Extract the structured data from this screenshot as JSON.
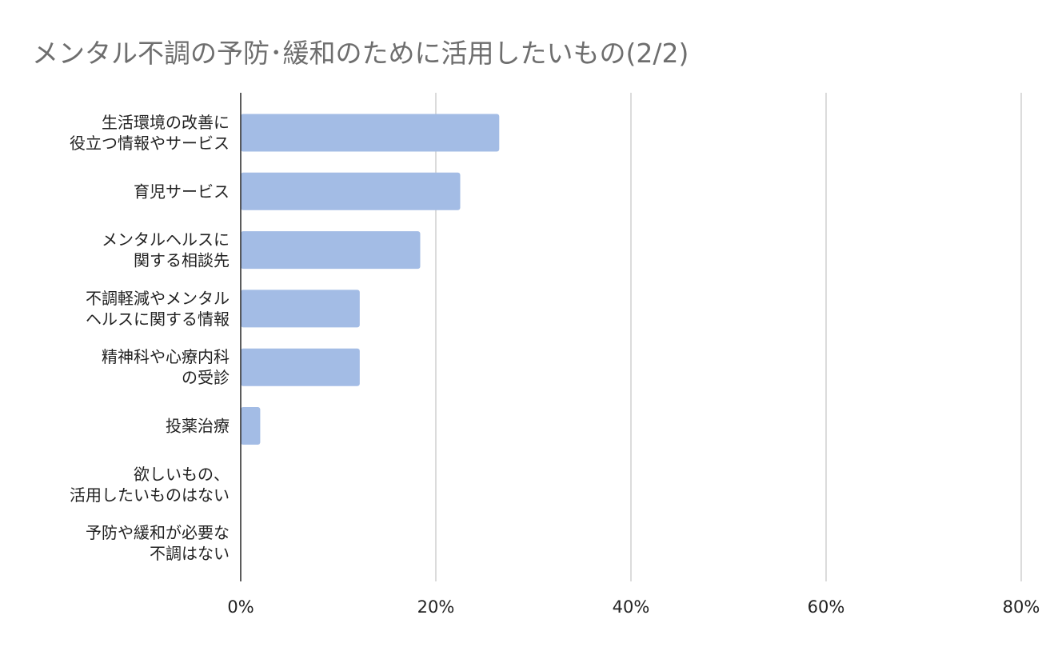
{
  "title": "メンタル不調の予防･緩和のために活用したいもの(2/2)",
  "colors": {
    "bar": "#a3bce5",
    "grid": "#c8c8c8",
    "axis": "#333333",
    "title": "#6e6e6e"
  },
  "chart_data": {
    "type": "bar",
    "orientation": "horizontal",
    "title": "メンタル不調の予防･緩和のために活用したいもの(2/2)",
    "categories": [
      [
        "生活環境の改善に",
        "役立つ情報やサービス"
      ],
      [
        "育児サービス"
      ],
      [
        "メンタルヘルスに",
        "関する相談先"
      ],
      [
        "不調軽減やメンタル",
        "ヘルスに関する情報"
      ],
      [
        "精神科や心療内科",
        "の受診"
      ],
      [
        "投薬治療"
      ],
      [
        "欲しいもの、",
        "活用したいものはない"
      ],
      [
        "予防や緩和が必要な",
        "不調はない"
      ]
    ],
    "values": [
      26.5,
      22.5,
      18.4,
      12.2,
      12.2,
      2.0,
      0,
      0
    ],
    "xlim": [
      0,
      80
    ],
    "xticks": [
      0,
      20,
      40,
      60,
      80
    ],
    "tick_format": "{v}%",
    "grid": "vertical",
    "legend": "none"
  }
}
